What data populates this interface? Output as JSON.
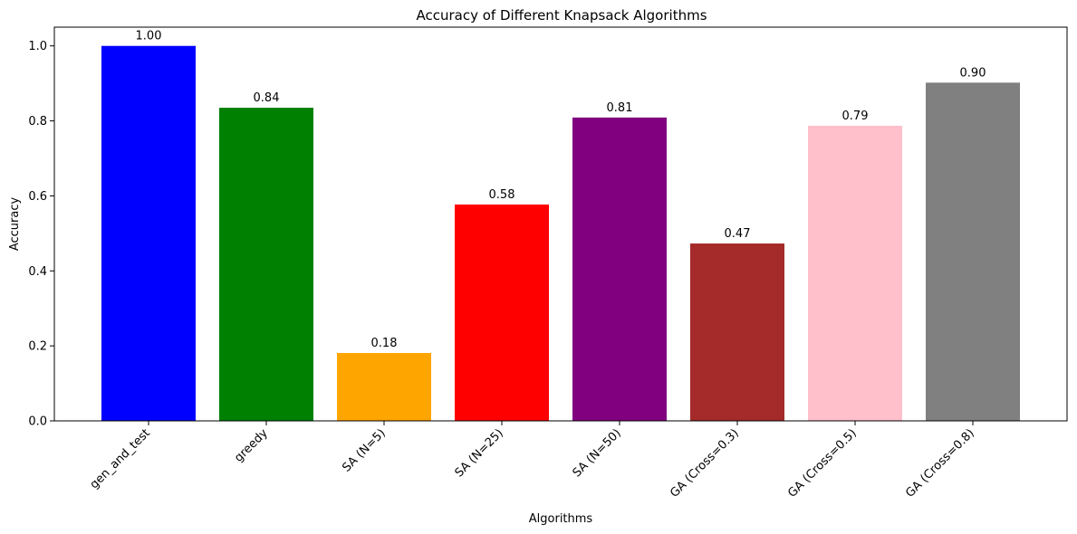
{
  "chart_data": {
    "type": "bar",
    "title": "Accuracy of Different Knapsack Algorithms",
    "xlabel": "Algorithms",
    "ylabel": "Accuracy",
    "ylim": [
      0,
      1.05
    ],
    "yticks": [
      0.0,
      0.2,
      0.4,
      0.6,
      0.8,
      1.0
    ],
    "ytick_labels": [
      "0.0",
      "0.2",
      "0.4",
      "0.6",
      "0.8",
      "1.0"
    ],
    "grid": false,
    "categories": [
      "gen_and_test",
      "greedy",
      "SA (N=5)",
      "SA (N=25)",
      "SA (N=50)",
      "GA (Cross=0.3)",
      "GA (Cross=0.5)",
      "GA (Cross=0.8)"
    ],
    "values": [
      1.0,
      0.835,
      0.181,
      0.577,
      0.809,
      0.473,
      0.787,
      0.902
    ],
    "data_labels": [
      "1.00",
      "0.84",
      "0.18",
      "0.58",
      "0.81",
      "0.47",
      "0.79",
      "0.90"
    ],
    "colors": [
      "#0000ff",
      "#008000",
      "#ffa500",
      "#ff0000",
      "#800080",
      "#a52a2a",
      "#ffc0cb",
      "#808080"
    ]
  }
}
